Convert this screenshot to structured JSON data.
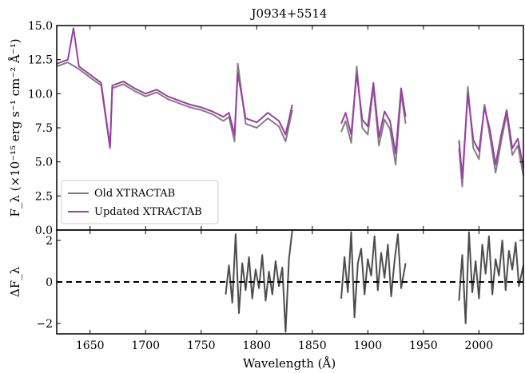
{
  "chart_data": [
    {
      "type": "line",
      "panel": "top",
      "title": "J0934+5514",
      "xlabel": "",
      "ylabel": "F_λ (×10⁻¹⁵ erg s⁻¹ cm⁻² Å⁻¹)",
      "xlim": [
        1620,
        2040
      ],
      "ylim": [
        0,
        15
      ],
      "xticks": [
        1650,
        1700,
        1750,
        1800,
        1850,
        1900,
        1950,
        2000
      ],
      "yticks": [
        0.0,
        2.5,
        5.0,
        7.5,
        10.0,
        12.5,
        15.0
      ],
      "ytick_labels": [
        "0.0",
        "2.5",
        "5.0",
        "7.5",
        "10.0",
        "12.5",
        "15.0"
      ],
      "legend": {
        "placement": "lower-left",
        "entries": [
          "Old XTRACTAB",
          "Updated XTRACTAB"
        ]
      },
      "series": [
        {
          "name": "Old XTRACTAB",
          "color": "#808080",
          "segments": [
            {
              "x": [
                1620,
                1630,
                1640,
                1650,
                1660,
                1668,
                1670,
                1680,
                1690,
                1700,
                1710,
                1720,
                1730,
                1740,
                1750,
                1760,
                1770,
                1775,
                1780,
                1783,
                1790,
                1800,
                1810,
                1820,
                1826,
                1832
              ],
              "y": [
                12.0,
                12.3,
                11.8,
                11.2,
                10.6,
                6.0,
                10.4,
                10.7,
                10.2,
                9.8,
                10.1,
                9.6,
                9.3,
                9.0,
                8.8,
                8.5,
                8.0,
                8.3,
                6.5,
                12.2,
                7.8,
                7.5,
                8.2,
                7.6,
                6.5,
                8.8
              ]
            },
            {
              "x": [
                1876,
                1880,
                1885,
                1890,
                1895,
                1900,
                1905,
                1910,
                1915,
                1920,
                1925,
                1930,
                1934
              ],
              "y": [
                7.2,
                8.0,
                6.4,
                12.0,
                7.5,
                7.0,
                10.5,
                6.2,
                8.1,
                7.4,
                4.8,
                10.0,
                7.8
              ]
            },
            {
              "x": [
                1982,
                1985,
                1990,
                1995,
                2000,
                2005,
                2010,
                2015,
                2020,
                2025,
                2030,
                2035,
                2040
              ],
              "y": [
                6.0,
                3.2,
                10.5,
                6.0,
                5.2,
                9.2,
                6.8,
                4.2,
                6.5,
                8.5,
                5.5,
                6.2,
                4.0
              ]
            }
          ]
        },
        {
          "name": "Updated XTRACTAB",
          "color": "#9a3fa0",
          "segments": [
            {
              "x": [
                1620,
                1630,
                1635,
                1640,
                1650,
                1660,
                1668,
                1670,
                1680,
                1690,
                1700,
                1710,
                1720,
                1730,
                1740,
                1750,
                1760,
                1770,
                1775,
                1780,
                1783,
                1790,
                1800,
                1810,
                1820,
                1826,
                1832
              ],
              "y": [
                12.2,
                12.5,
                14.8,
                12.0,
                11.4,
                10.8,
                6.1,
                10.6,
                10.9,
                10.4,
                10.0,
                10.3,
                9.8,
                9.5,
                9.2,
                9.0,
                8.7,
                8.3,
                8.6,
                7.0,
                11.5,
                8.2,
                7.9,
                8.6,
                8.0,
                7.0,
                9.2
              ]
            },
            {
              "x": [
                1876,
                1880,
                1885,
                1890,
                1895,
                1900,
                1905,
                1910,
                1915,
                1920,
                1925,
                1930,
                1934
              ],
              "y": [
                7.8,
                8.6,
                7.0,
                11.5,
                8.1,
                7.6,
                10.8,
                6.8,
                8.7,
                8.0,
                5.6,
                10.4,
                8.3
              ]
            },
            {
              "x": [
                1982,
                1985,
                1990,
                1995,
                2000,
                2005,
                2010,
                2015,
                2020,
                2025,
                2030,
                2035,
                2040
              ],
              "y": [
                6.6,
                3.8,
                10.0,
                6.6,
                5.8,
                9.0,
                7.3,
                4.8,
                7.0,
                8.8,
                6.0,
                6.7,
                4.6
              ]
            }
          ]
        }
      ]
    },
    {
      "type": "line",
      "panel": "bottom",
      "xlabel": "Wavelength (Å)",
      "ylabel": "ΔF_λ",
      "xlim": [
        1620,
        2040
      ],
      "ylim": [
        -2.5,
        2.5
      ],
      "xticks": [
        1650,
        1700,
        1750,
        1800,
        1850,
        1900,
        1950,
        2000
      ],
      "xtick_labels": [
        "1650",
        "1700",
        "1750",
        "1800",
        "1850",
        "1900",
        "1950",
        "2000"
      ],
      "yticks": [
        -2,
        0,
        2
      ],
      "ytick_labels": [
        "−2",
        "0",
        "2"
      ],
      "reference_line": {
        "y": 0,
        "style": "dashed",
        "color": "#000000"
      },
      "series": [
        {
          "color": "#4d4d4d",
          "segments": [
            {
              "x": [
                1772,
                1775,
                1778,
                1781,
                1784,
                1787,
                1790,
                1793,
                1796,
                1799,
                1802,
                1805,
                1808,
                1811,
                1814,
                1817,
                1820,
                1823,
                1826,
                1829,
                1832
              ],
              "y": [
                -0.6,
                0.8,
                -1.0,
                2.3,
                -1.5,
                0.9,
                -0.4,
                1.2,
                -0.8,
                0.6,
                -0.3,
                1.3,
                -0.9,
                0.5,
                -0.6,
                1.0,
                -0.2,
                0.7,
                -2.4,
                1.1,
                2.5
              ]
            },
            {
              "x": [
                1876,
                1879,
                1882,
                1885,
                1888,
                1891,
                1894,
                1897,
                1900,
                1903,
                1906,
                1909,
                1912,
                1915,
                1918,
                1921,
                1924,
                1927,
                1930,
                1934
              ],
              "y": [
                -0.8,
                1.2,
                -0.5,
                2.4,
                -1.7,
                0.9,
                1.6,
                -0.6,
                1.1,
                0.3,
                2.2,
                -0.4,
                1.4,
                0.2,
                1.8,
                -0.7,
                1.0,
                2.3,
                -0.3,
                0.9
              ]
            },
            {
              "x": [
                1982,
                1985,
                1988,
                1991,
                1994,
                1997,
                2000,
                2003,
                2006,
                2009,
                2012,
                2015,
                2018,
                2021,
                2024,
                2027,
                2030,
                2033,
                2036,
                2040
              ],
              "y": [
                -0.9,
                1.3,
                -2.0,
                2.4,
                -0.5,
                1.0,
                -0.8,
                1.8,
                0.4,
                2.2,
                -0.6,
                1.1,
                0.3,
                2.0,
                -0.4,
                1.5,
                0.6,
                1.9,
                -0.2,
                0.8
              ]
            }
          ]
        }
      ]
    }
  ]
}
